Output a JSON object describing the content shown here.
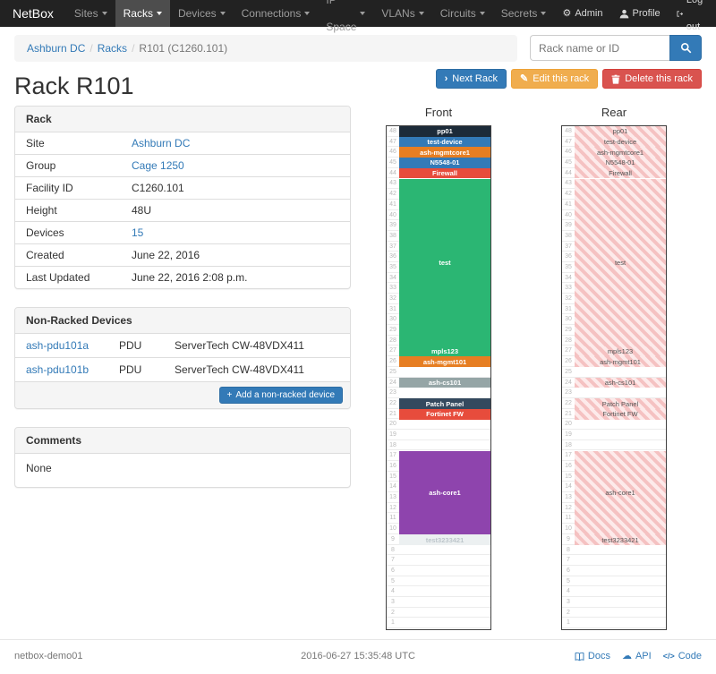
{
  "icons": {
    "gear": "⚙",
    "cloud": "☁",
    "pencil": "✎",
    "chevron_right": "›",
    "plus": "+",
    "code": "</>"
  },
  "navbar": {
    "brand": "NetBox",
    "items": [
      {
        "label": "Sites",
        "active": false
      },
      {
        "label": "Racks",
        "active": true
      },
      {
        "label": "Devices",
        "active": false
      },
      {
        "label": "Connections",
        "active": false
      },
      {
        "label": "IP Space",
        "active": false
      },
      {
        "label": "VLANs",
        "active": false
      },
      {
        "label": "Circuits",
        "active": false
      },
      {
        "label": "Secrets",
        "active": false
      }
    ],
    "admin_label": "Admin",
    "profile_label": "Profile",
    "logout_label": "Log out"
  },
  "breadcrumb": {
    "items": [
      {
        "label": "Ashburn DC",
        "link": true
      },
      {
        "label": "Racks",
        "link": true
      },
      {
        "label": "R101 (C1260.101)",
        "link": false
      }
    ]
  },
  "search": {
    "placeholder": "Rack name or ID"
  },
  "actions": {
    "next": "Next Rack",
    "edit": "Edit this rack",
    "delete": "Delete this rack"
  },
  "page_title": "Rack R101",
  "rack_panel": {
    "title": "Rack",
    "rows": [
      {
        "label": "Site",
        "value": "Ashburn DC",
        "link": true
      },
      {
        "label": "Group",
        "value": "Cage 1250",
        "link": true
      },
      {
        "label": "Facility ID",
        "value": "C1260.101",
        "link": false
      },
      {
        "label": "Height",
        "value": "48U",
        "link": false
      },
      {
        "label": "Devices",
        "value": "15",
        "link": true
      },
      {
        "label": "Created",
        "value": "June 22, 2016",
        "link": false
      },
      {
        "label": "Last Updated",
        "value": "June 22, 2016 2:08 p.m.",
        "link": false
      }
    ]
  },
  "nonracked_panel": {
    "title": "Non-Racked Devices",
    "rows": [
      {
        "name": "ash-pdu101a",
        "role": "PDU",
        "model": "ServerTech CW-48VDX411"
      },
      {
        "name": "ash-pdu101b",
        "role": "PDU",
        "model": "ServerTech CW-48VDX411"
      }
    ],
    "add_button": "Add a non-racked device"
  },
  "comments_panel": {
    "title": "Comments",
    "body": "None"
  },
  "elevations": {
    "front_title": "Front",
    "rear_title": "Rear",
    "units_total": 48,
    "devices": [
      {
        "name": "pp01",
        "top_u": 48,
        "height_u": 1,
        "color": "#1c2b39"
      },
      {
        "name": "test-device",
        "top_u": 47,
        "height_u": 1,
        "color": "#337ab7"
      },
      {
        "name": "ash-mgmtcore1",
        "top_u": 46,
        "height_u": 1,
        "color": "#e67e22"
      },
      {
        "name": "N5548-01",
        "top_u": 45,
        "height_u": 1,
        "color": "#337ab7"
      },
      {
        "name": "Firewall",
        "top_u": 44,
        "height_u": 1,
        "color": "#e74c3c"
      },
      {
        "name": "test",
        "top_u": 43,
        "height_u": 16,
        "color": "#2bb673"
      },
      {
        "name": "mpls123",
        "top_u": 27,
        "height_u": 1,
        "color": "#2bb673"
      },
      {
        "name": "ash-mgmt101",
        "top_u": 26,
        "height_u": 1,
        "color": "#e67e22"
      },
      {
        "name": "ash-cs101",
        "top_u": 24,
        "height_u": 1,
        "color": "#95a5a6"
      },
      {
        "name": "Patch Panel",
        "top_u": 22,
        "height_u": 1,
        "color": "#34495e"
      },
      {
        "name": "Fortinet FW",
        "top_u": 21,
        "height_u": 1,
        "color": "#e74c3c"
      },
      {
        "name": "ash-core1",
        "top_u": 17,
        "height_u": 8,
        "color": "#8e44ad"
      },
      {
        "name": "test3233421",
        "top_u": 9,
        "height_u": 1,
        "color": "#ecf0f1",
        "light": true
      }
    ]
  },
  "footer": {
    "hostname": "netbox-demo01",
    "timestamp": "2016-06-27 15:35:48 UTC",
    "links": [
      "Docs",
      "API",
      "Code"
    ]
  }
}
